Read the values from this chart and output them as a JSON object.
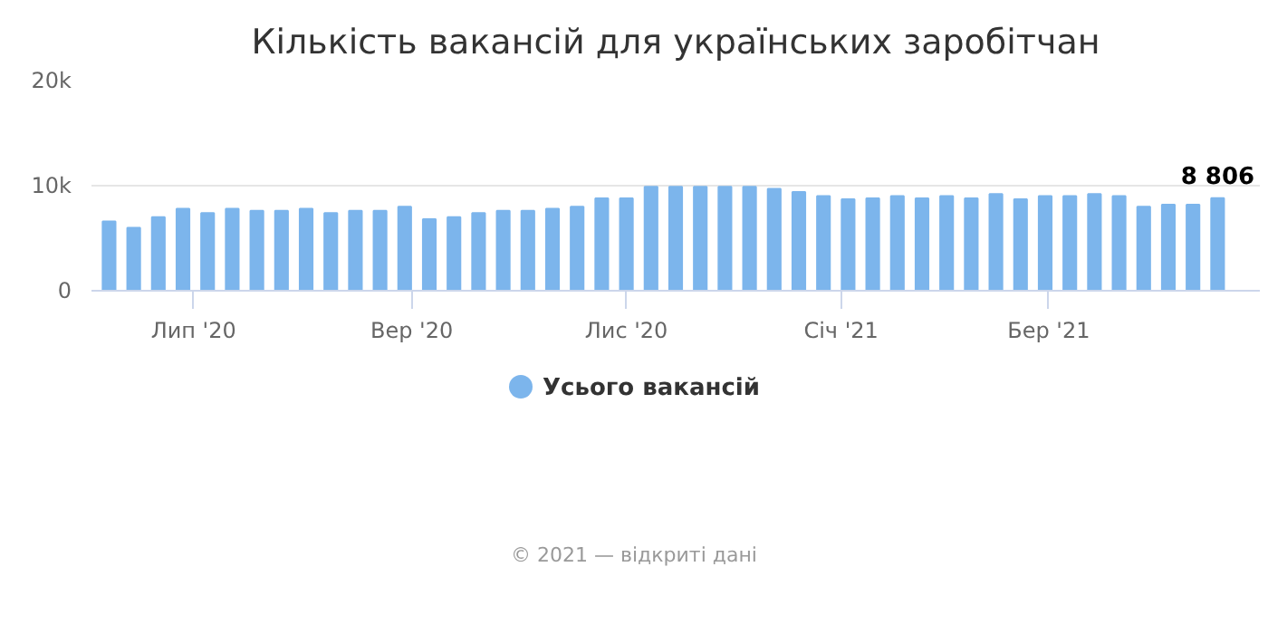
{
  "chart_data": {
    "type": "bar",
    "title": "Кількість вакансій для українських заробітчан",
    "x": [
      "2020-06-07",
      "2020-06-14",
      "2020-06-21",
      "2020-06-28",
      "2020-07-05",
      "2020-07-12",
      "2020-07-19",
      "2020-07-26",
      "2020-08-02",
      "2020-08-09",
      "2020-08-16",
      "2020-08-23",
      "2020-08-30",
      "2020-09-06",
      "2020-09-13",
      "2020-09-20",
      "2020-09-27",
      "2020-10-04",
      "2020-10-11",
      "2020-10-18",
      "2020-10-25",
      "2020-11-01",
      "2020-11-08",
      "2020-11-15",
      "2020-11-22",
      "2020-11-29",
      "2020-12-06",
      "2020-12-13",
      "2020-12-20",
      "2020-12-27",
      "2021-01-03",
      "2021-01-10",
      "2021-01-17",
      "2021-01-24",
      "2021-01-31",
      "2021-02-07",
      "2021-02-14",
      "2021-02-21",
      "2021-02-28",
      "2021-03-07",
      "2021-03-14",
      "2021-03-21",
      "2021-03-28",
      "2021-04-04",
      "2021-04-11",
      "2021-04-18"
    ],
    "series": [
      {
        "name": "Усього вакансій",
        "color": "#7cb5ec",
        "values": [
          6600,
          6000,
          7000,
          7800,
          7400,
          7800,
          7600,
          7600,
          7800,
          7400,
          7600,
          7600,
          8000,
          6800,
          7000,
          7400,
          7600,
          7600,
          7800,
          8000,
          8800,
          8800,
          9900,
          9900,
          9900,
          9900,
          9900,
          9700,
          9400,
          9000,
          8700,
          8800,
          9000,
          8800,
          9000,
          8800,
          9200,
          8700,
          9000,
          9000,
          9200,
          9000,
          8000,
          8200,
          8200,
          8806
        ],
        "value_labels": [
          null,
          null,
          null,
          null,
          null,
          null,
          null,
          null,
          null,
          null,
          null,
          null,
          null,
          null,
          null,
          null,
          null,
          null,
          null,
          null,
          null,
          null,
          null,
          null,
          null,
          null,
          null,
          null,
          null,
          null,
          null,
          null,
          null,
          null,
          null,
          null,
          null,
          null,
          null,
          null,
          null,
          null,
          null,
          null,
          null,
          "8 806"
        ]
      }
    ],
    "xlim": [
      "2020-06-02",
      "2021-04-30"
    ],
    "xticks": [
      {
        "value": "2020-07-01",
        "label": "Лип '20"
      },
      {
        "value": "2020-09-01",
        "label": "Вер '20"
      },
      {
        "value": "2020-11-01",
        "label": "Лис '20"
      },
      {
        "value": "2021-01-01",
        "label": "Січ '21"
      },
      {
        "value": "2021-03-01",
        "label": "Бер '21"
      }
    ],
    "ylim": [
      0,
      20000
    ],
    "yticks": [
      0,
      {
        "value": 10000,
        "label": "10k"
      },
      {
        "value": 20000,
        "label": "20k"
      }
    ],
    "grid": "y",
    "legend": "bottom",
    "annotations": [
      "© 2021 — відкриті дані"
    ]
  }
}
